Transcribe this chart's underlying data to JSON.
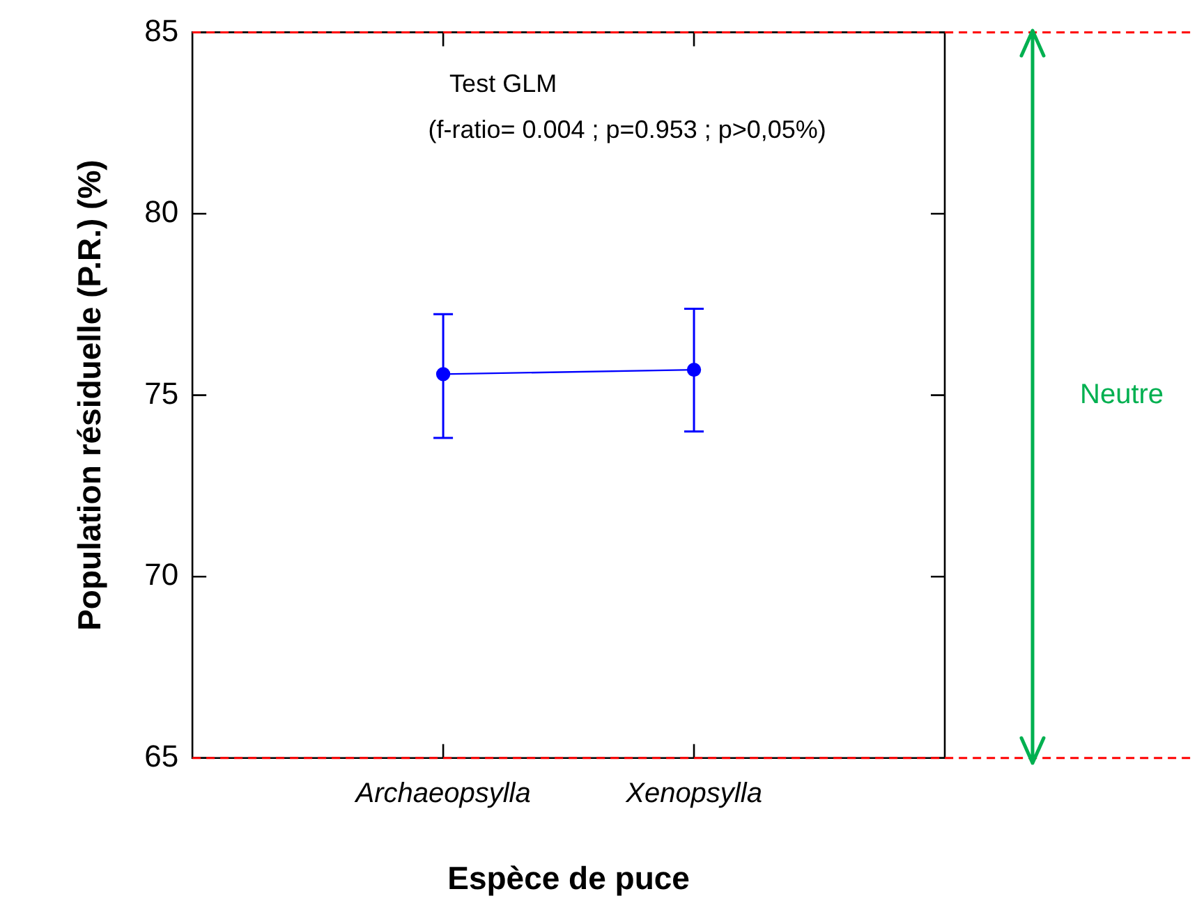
{
  "chart_data": {
    "type": "line",
    "xlabel": "Espèce de puce",
    "ylabel": "Population résiduelle (P.R.) (%)",
    "categories": [
      "Archaeopsylla",
      "Xenopsylla"
    ],
    "series": [
      {
        "color": "#0000ff",
        "values": [
          75.58,
          75.7
        ],
        "errors": [
          [
            73.82,
            77.23
          ],
          [
            74.0,
            77.38
          ]
        ]
      }
    ],
    "marker": "circle",
    "ylim": [
      65,
      85
    ],
    "yticks": [
      65,
      70,
      75,
      80,
      85
    ],
    "grid": false,
    "legend": false,
    "ref_lines": [
      {
        "axis": "y",
        "value": 85,
        "color": "#ff0000",
        "line_style": "dashed"
      },
      {
        "axis": "y",
        "value": 65,
        "color": "#ff0000",
        "line_style": "dashed"
      }
    ],
    "annotations": [
      "Test GLM",
      "(f-ratio= 0.004 ; p=0.953 ; p>0,05%)",
      "Neutre"
    ]
  }
}
